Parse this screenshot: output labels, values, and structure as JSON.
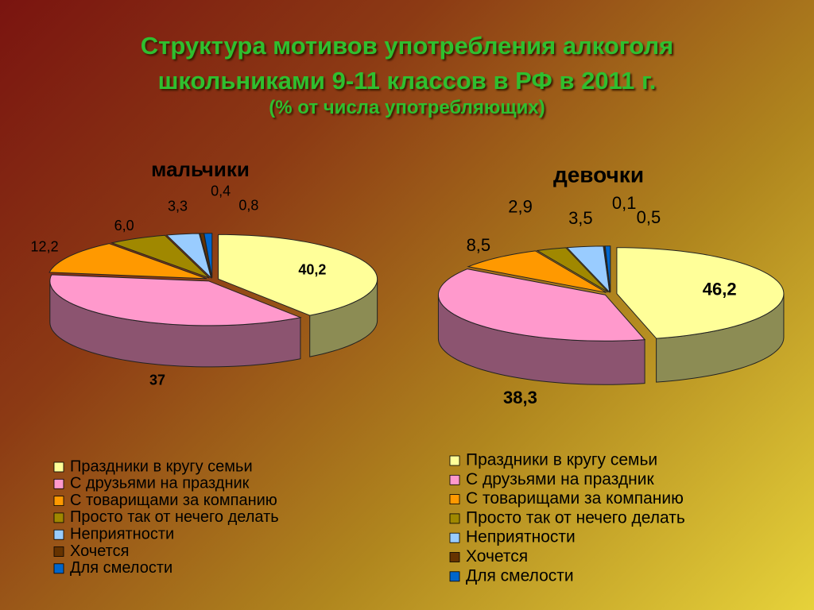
{
  "header": {
    "title": [
      "Структура мотивов употребления алкоголя",
      "школьниками 9-11 классов  в РФ в 2011 г."
    ],
    "subtitle": "(% от числа употребляющих)"
  },
  "chart_data": [
    {
      "type": "pie",
      "title": "мальчики",
      "categories": [
        "Праздники в кругу семьи",
        "С друзьями на праздник",
        "С товарищами за компанию",
        "Просто так от нечего делать",
        "Неприятности",
        "Хочется",
        "Для смелости"
      ],
      "values": [
        40.2,
        37,
        12.2,
        6.0,
        3.3,
        0.4,
        0.8
      ],
      "value_labels": [
        "40,2",
        "37",
        "12,2",
        "6,0",
        "3,3",
        "0,4",
        "0,8"
      ],
      "colors": [
        "#ffff99",
        "#ff99cc",
        "#ff9900",
        "#a08800",
        "#99ccff",
        "#663300",
        "#0066cc"
      ]
    },
    {
      "type": "pie",
      "title": "девочки",
      "categories": [
        "Праздники в кругу семьи",
        "С друзьями на праздник",
        "С товарищами за компанию",
        "Просто так от нечего делать",
        "Неприятности",
        "Хочется",
        "Для смелости"
      ],
      "values": [
        46.2,
        38.3,
        8.5,
        2.9,
        3.5,
        0.1,
        0.5
      ],
      "value_labels": [
        "46,2",
        "38,3",
        "8,5",
        "2,9",
        "3,5",
        "0,1",
        "0,5"
      ],
      "colors": [
        "#ffff99",
        "#ff99cc",
        "#ff9900",
        "#a08800",
        "#99ccff",
        "#663300",
        "#0066cc"
      ]
    }
  ]
}
